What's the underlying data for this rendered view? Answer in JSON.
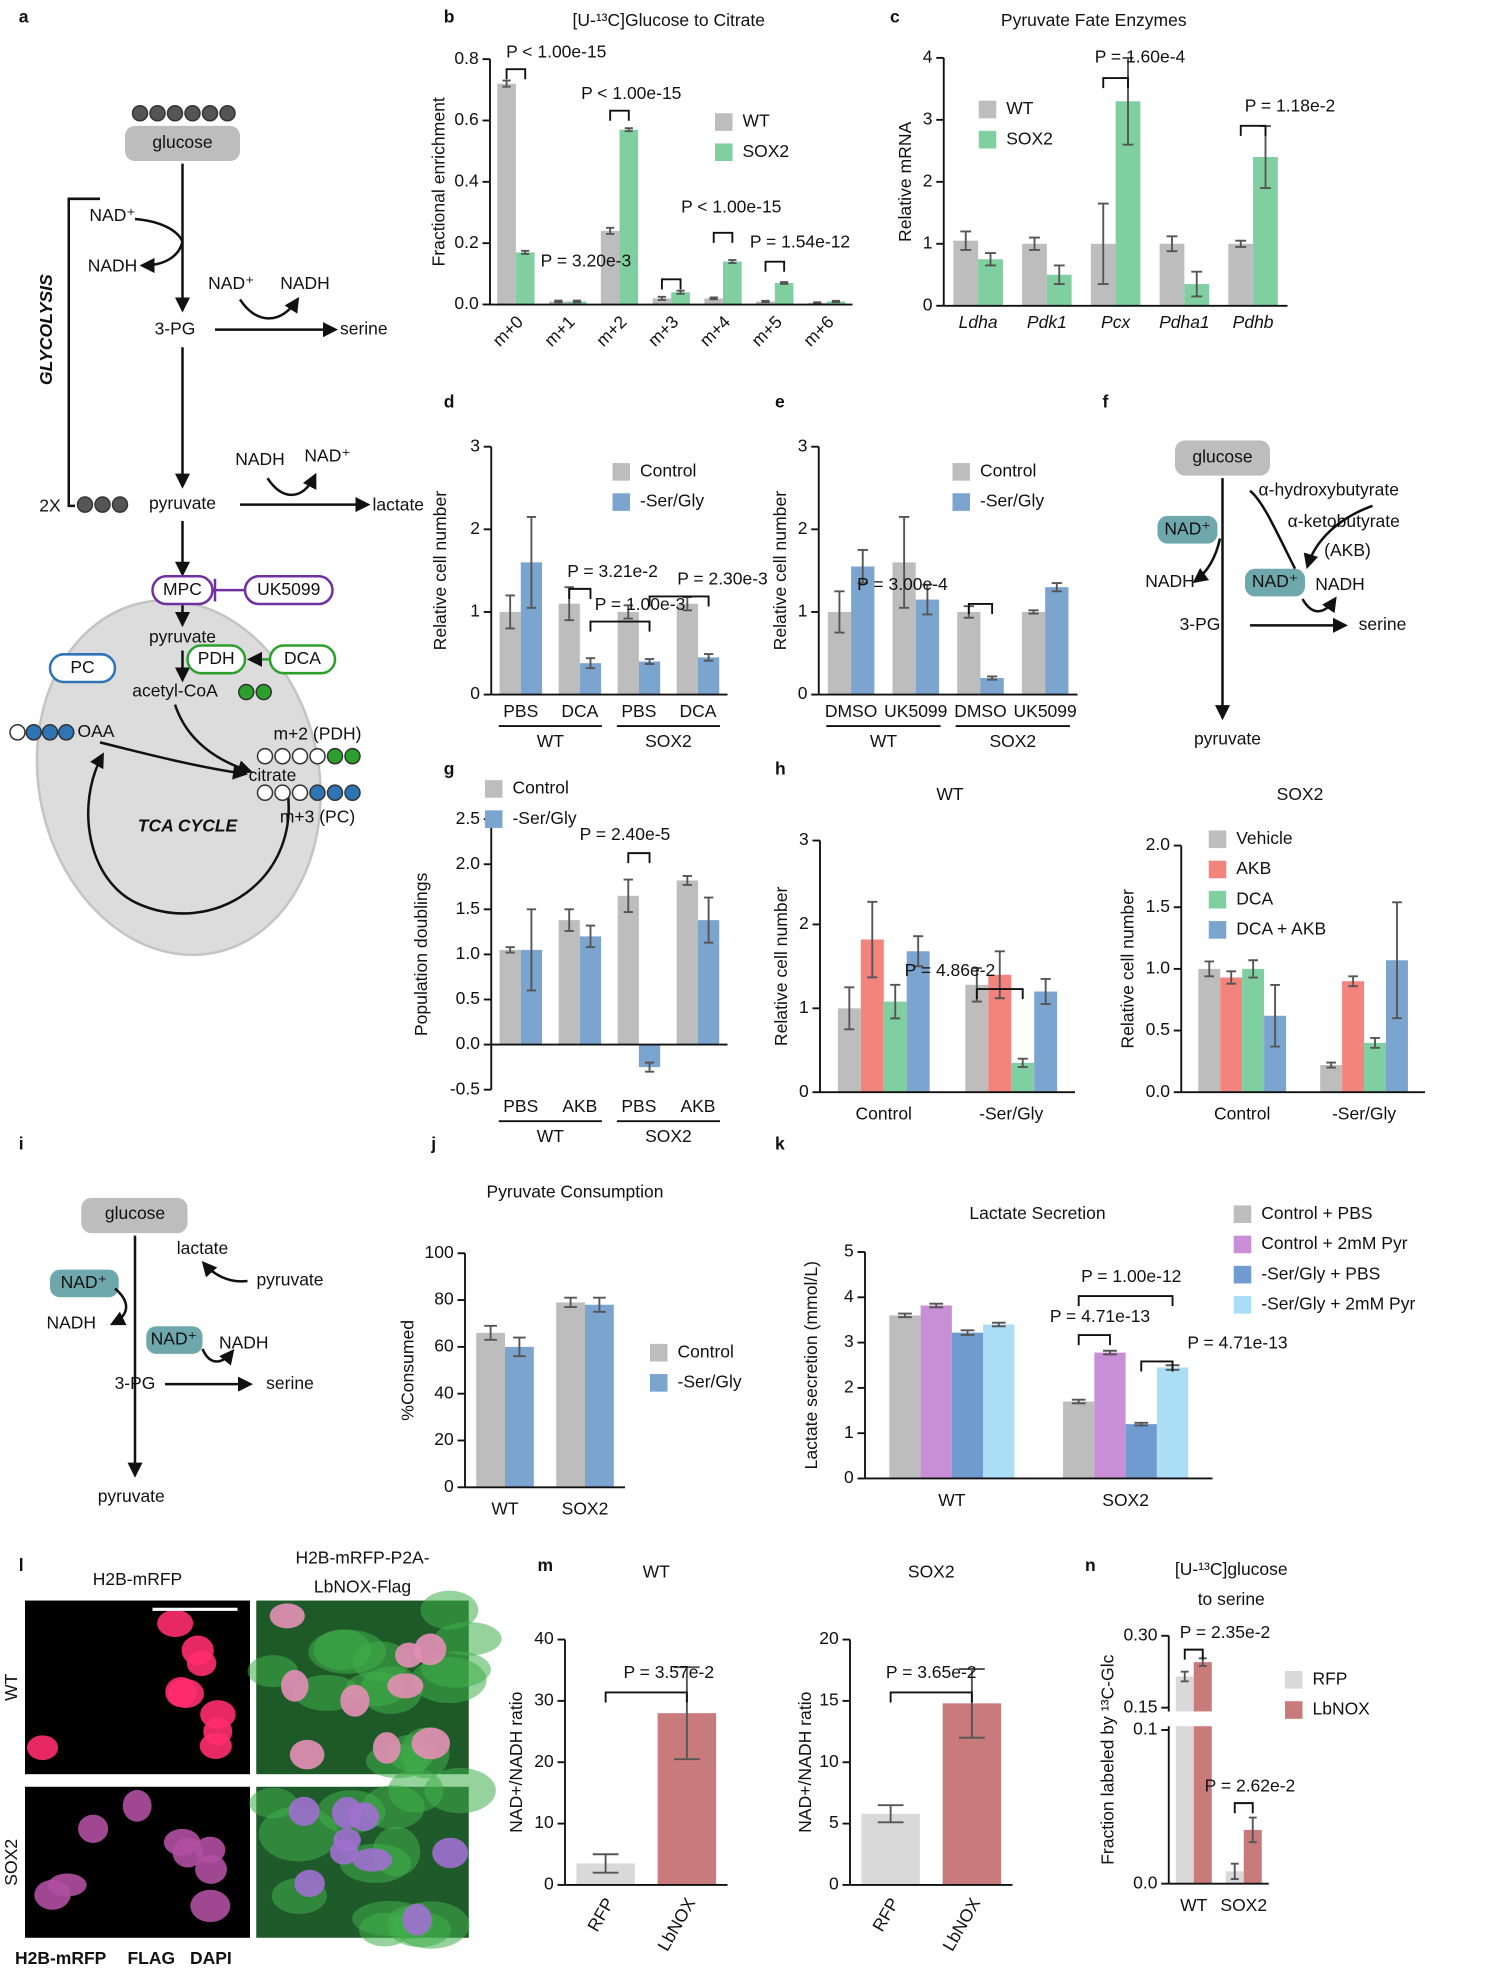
{
  "panel_labels": [
    "a",
    "b",
    "c",
    "d",
    "e",
    "f",
    "g",
    "h",
    "i",
    "j",
    "k",
    "l",
    "m",
    "n"
  ],
  "diagram_a": {
    "labels": [
      "glucose",
      "NAD⁺",
      "NADH",
      "NAD⁺",
      "NADH",
      "3-PG",
      "serine",
      "GLYCOLYSIS",
      "2X",
      "pyruvate",
      "NADH",
      "NAD⁺",
      "lactate",
      "MPC",
      "UK5099",
      "pyruvate",
      "PC",
      "PDH",
      "DCA",
      "acetyl-CoA",
      "OAA",
      "citrate",
      "m+2 (PDH)",
      "m+3 (PC)",
      "TCA CYCLE"
    ]
  },
  "diagram_f": {
    "labels": [
      "glucose",
      "α-hydroxybutyrate",
      "α-ketobutyrate",
      "(AKB)",
      "NAD⁺",
      "NADH",
      "NAD⁺",
      "NADH",
      "3-PG",
      "serine",
      "pyruvate"
    ]
  },
  "diagram_i": {
    "labels": [
      "glucose",
      "lactate",
      "pyruvate",
      "NAD⁺",
      "NADH",
      "NAD⁺",
      "NADH",
      "3-PG",
      "serine",
      "pyruvate"
    ]
  },
  "panel_l": {
    "column_titles": [
      "H2B-mRFP",
      "H2B-mRFP-P2A-",
      "LbNOX-Flag"
    ],
    "row_labels": [
      "WT",
      "SOX2"
    ],
    "channels": [
      "H2B-mRFP",
      "FLAG",
      "DAPI"
    ]
  },
  "chart_data": [
    {
      "type": "bar",
      "title": "[U-¹³C]Glucose to Citrate",
      "ylabel": "Fractional enrichment",
      "categories": [
        "m+0",
        "m+1",
        "m+2",
        "m+3",
        "m+4",
        "m+5",
        "m+6"
      ],
      "series": [
        {
          "name": "WT",
          "color": "#bdbdbd",
          "values": [
            0.72,
            0.01,
            0.24,
            0.02,
            0.02,
            0.01,
            0.005
          ],
          "errors": [
            0.01,
            0.003,
            0.01,
            0.005,
            0.003,
            0.002,
            0.002
          ]
        },
        {
          "name": "SOX2",
          "color": "#7fcfa1",
          "values": [
            0.17,
            0.01,
            0.57,
            0.04,
            0.14,
            0.07,
            0.01
          ],
          "errors": [
            0.005,
            0.003,
            0.005,
            0.005,
            0.005,
            0.003,
            0.002
          ]
        }
      ],
      "ylim": [
        0,
        0.8
      ],
      "yticks": [
        {
          "value": 0,
          "label": "0.0"
        },
        0.2,
        0.4,
        0.6,
        0.8
      ],
      "annotations": [
        "P < 1.00e-15",
        "P < 1.00e-15",
        "P = 3.20e-3",
        "P < 1.00e-15",
        "P = 1.54e-12"
      ]
    },
    {
      "type": "bar",
      "title": "Pyruvate Fate Enzymes",
      "ylabel": "Relative mRNA",
      "categories": [
        "Ldha",
        "Pdk1",
        "Pcx",
        "Pdha1",
        "Pdhb"
      ],
      "series": [
        {
          "name": "WT",
          "color": "#bdbdbd",
          "values": [
            1.05,
            1.0,
            1.0,
            1.0,
            1.0
          ],
          "errors": [
            0.15,
            0.1,
            0.65,
            0.12,
            0.05
          ]
        },
        {
          "name": "SOX2",
          "color": "#7fcfa1",
          "values": [
            0.75,
            0.5,
            3.3,
            0.35,
            2.4
          ],
          "errors": [
            0.1,
            0.15,
            0.7,
            0.2,
            0.5
          ]
        }
      ],
      "ylim": [
        0,
        4
      ],
      "yticks": [
        0,
        1,
        2,
        3,
        4
      ],
      "annotations": [
        "P = 1.60e-4",
        "P = 1.18e-2"
      ]
    },
    {
      "type": "bar",
      "ylabel": "Relative cell number",
      "categories": [
        "PBS",
        "DCA",
        "PBS",
        "DCA"
      ],
      "groups": [
        "WT",
        "SOX2"
      ],
      "series": [
        {
          "name": "Control",
          "color": "#bdbdbd",
          "values": [
            1.0,
            1.1,
            1.0,
            1.1
          ],
          "errors": [
            0.2,
            0.2,
            0.08,
            0.08
          ]
        },
        {
          "name": "-Ser/Gly",
          "color": "#7ba4cf",
          "values": [
            1.6,
            0.38,
            0.4,
            0.45
          ],
          "errors": [
            0.55,
            0.06,
            0.03,
            0.04
          ]
        }
      ],
      "ylim": [
        0,
        3
      ],
      "yticks": [
        0,
        1,
        2,
        3
      ],
      "annotations": [
        "P = 3.21e-2",
        "P = 1.00e-3",
        "P = 2.30e-3"
      ]
    },
    {
      "type": "bar",
      "ylabel": "Relative cell number",
      "categories": [
        "DMSO",
        "UK5099",
        "DMSO",
        "UK5099"
      ],
      "groups": [
        "WT",
        "SOX2"
      ],
      "series": [
        {
          "name": "Control",
          "color": "#bdbdbd",
          "values": [
            1.0,
            1.6,
            1.0,
            1.0
          ],
          "errors": [
            0.25,
            0.55,
            0.07,
            0.02
          ]
        },
        {
          "name": "-Ser/Gly",
          "color": "#7ba4cf",
          "values": [
            1.55,
            1.15,
            0.2,
            1.3
          ],
          "errors": [
            0.2,
            0.18,
            0.02,
            0.05
          ]
        }
      ],
      "ylim": [
        0,
        3
      ],
      "yticks": [
        0,
        1,
        2,
        3
      ],
      "annotations": [
        "P = 3.00e-4"
      ]
    },
    {
      "type": "bar",
      "ylabel": "Population doublings",
      "categories": [
        "PBS",
        "AKB",
        "PBS",
        "AKB"
      ],
      "groups": [
        "WT",
        "SOX2"
      ],
      "series": [
        {
          "name": "Control",
          "color": "#bdbdbd",
          "values": [
            1.05,
            1.38,
            1.65,
            1.82
          ],
          "errors": [
            0.03,
            0.12,
            0.18,
            0.05
          ]
        },
        {
          "name": "-Ser/Gly",
          "color": "#7ba4cf",
          "values": [
            1.05,
            1.2,
            -0.25,
            1.38
          ],
          "errors": [
            0.45,
            0.12,
            0.05,
            0.25
          ]
        }
      ],
      "ylim": [
        -0.5,
        2.5
      ],
      "yticks": [
        -0.5,
        {
          "value": 0,
          "label": "0.0"
        },
        0.5,
        {
          "value": 1,
          "label": "1.0"
        },
        1.5,
        {
          "value": 2,
          "label": "2.0"
        },
        2.5
      ],
      "annotations": [
        "P = 2.40e-5"
      ]
    },
    {
      "type": "bar",
      "title": "WT",
      "ylabel": "Relative cell number",
      "categories": [
        "Control",
        "-Ser/Gly"
      ],
      "series": [
        {
          "color": "#bdbdbd",
          "values": [
            1.0,
            1.28
          ],
          "errors": [
            0.25,
            0.2
          ]
        },
        {
          "color": "#f2837d",
          "values": [
            1.82,
            1.4
          ],
          "errors": [
            0.45,
            0.28
          ]
        },
        {
          "color": "#7fcfa1",
          "values": [
            1.08,
            0.35
          ],
          "errors": [
            0.2,
            0.05
          ]
        },
        {
          "color": "#7ba4cf",
          "values": [
            1.68,
            1.2
          ],
          "errors": [
            0.18,
            0.15
          ]
        }
      ],
      "ylim": [
        0,
        3
      ],
      "yticks": [
        0,
        1,
        2,
        3
      ],
      "annotations": [
        "P = 4.86e-2"
      ]
    },
    {
      "type": "bar",
      "title": "SOX2",
      "ylabel": "Relative cell number",
      "categories": [
        "Control",
        "-Ser/Gly"
      ],
      "series": [
        {
          "name": "Vehicle",
          "color": "#bdbdbd",
          "values": [
            1.0,
            0.22
          ],
          "errors": [
            0.06,
            0.02
          ]
        },
        {
          "name": "AKB",
          "color": "#f2837d",
          "values": [
            0.93,
            0.9
          ],
          "errors": [
            0.05,
            0.04
          ]
        },
        {
          "name": "DCA",
          "color": "#7fcfa1",
          "values": [
            1.0,
            0.4
          ],
          "errors": [
            0.07,
            0.04
          ]
        },
        {
          "name": "DCA + AKB",
          "color": "#7ba4cf",
          "values": [
            0.62,
            1.07
          ],
          "errors": [
            0.25,
            0.47
          ]
        }
      ],
      "ylim": [
        0,
        2
      ],
      "yticks": [
        {
          "value": 0,
          "label": "0.0"
        },
        0.5,
        {
          "value": 1,
          "label": "1.0"
        },
        1.5,
        {
          "value": 2,
          "label": "2.0"
        }
      ],
      "annotations": []
    },
    {
      "type": "bar",
      "title": "Pyruvate Consumption",
      "ylabel": "%Consumed",
      "categories": [
        "WT",
        "SOX2"
      ],
      "series": [
        {
          "name": "Control",
          "color": "#bdbdbd",
          "values": [
            66,
            79
          ],
          "errors": [
            3,
            2
          ]
        },
        {
          "name": "-Ser/Gly",
          "color": "#7ba4cf",
          "values": [
            60,
            78
          ],
          "errors": [
            4,
            3
          ]
        }
      ],
      "ylim": [
        0,
        100
      ],
      "yticks": [
        0,
        20,
        40,
        60,
        80,
        100
      ],
      "annotations": []
    },
    {
      "type": "bar",
      "title": "Lactate Secretion",
      "ylabel": "Lactate secretion (mmol/L)",
      "categories": [
        "WT",
        "SOX2"
      ],
      "series": [
        {
          "name": "Control + PBS",
          "color": "#bdbdbd",
          "values": [
            3.6,
            1.7
          ],
          "errors": [
            0.04,
            0.04
          ]
        },
        {
          "name": "Control + 2mM Pyr",
          "color": "#c98fd6",
          "values": [
            3.82,
            2.78
          ],
          "errors": [
            0.04,
            0.04
          ]
        },
        {
          "name": "-Ser/Gly + PBS",
          "color": "#6f9bd0",
          "values": [
            3.22,
            1.2
          ],
          "errors": [
            0.05,
            0.03
          ]
        },
        {
          "name": "-Ser/Gly + 2mM Pyr",
          "color": "#a9def6",
          "values": [
            3.4,
            2.45
          ],
          "errors": [
            0.04,
            0.05
          ]
        }
      ],
      "ylim": [
        0,
        5
      ],
      "yticks": [
        0,
        1,
        2,
        3,
        4,
        5
      ],
      "annotations": [
        "P = 1.00e-12",
        "P = 4.71e-13",
        "P = 4.71e-13"
      ]
    },
    {
      "type": "bar",
      "title": "WT",
      "ylabel": "NAD+/NADH ratio",
      "categories": [
        "RFP",
        "LbNOX"
      ],
      "series": [
        {
          "colors": [
            "#d9d9d9",
            "#c97b7b"
          ],
          "values": [
            3.5,
            28
          ],
          "errors": [
            1.5,
            7.5
          ]
        }
      ],
      "ylim": [
        0,
        40
      ],
      "yticks": [
        0,
        10,
        20,
        30,
        40
      ],
      "annotations": [
        "P = 3.57e-2"
      ]
    },
    {
      "type": "bar",
      "title": "SOX2",
      "ylabel": "NAD+/NADH ratio",
      "categories": [
        "RFP",
        "LbNOX"
      ],
      "series": [
        {
          "colors": [
            "#d9d9d9",
            "#c97b7b"
          ],
          "values": [
            5.8,
            14.8
          ],
          "errors": [
            0.7,
            2.8
          ]
        }
      ],
      "ylim": [
        0,
        20
      ],
      "yticks": [
        0,
        5,
        10,
        15,
        20
      ],
      "annotations": [
        "P = 3.65e-2"
      ]
    },
    {
      "type": "bar",
      "title": [
        "[U-¹³C]glucose",
        "to serine"
      ],
      "ylabel": "Fraction labeled by ¹³C-Glc",
      "categories": [
        "WT",
        "SOX2"
      ],
      "series": [
        {
          "name": "RFP",
          "color": "#d9d9d9",
          "values": [
            0.215,
            0.008
          ],
          "errors": [
            0.01,
            0.005
          ]
        },
        {
          "name": "LbNOX",
          "color": "#c97b7b",
          "values": [
            0.245,
            0.035
          ],
          "errors": [
            0.008,
            0.008
          ]
        }
      ],
      "ylim": [
        0,
        0.3
      ],
      "ybreak": [
        0.1,
        0.15
      ],
      "yticks": [
        {
          "value": 0,
          "label": "0.0"
        },
        0.1,
        0.15,
        {
          "value": 0.3,
          "label": "0.30"
        }
      ],
      "annotations": [
        "P = 2.35e-2",
        "P = 2.62e-2"
      ]
    }
  ]
}
